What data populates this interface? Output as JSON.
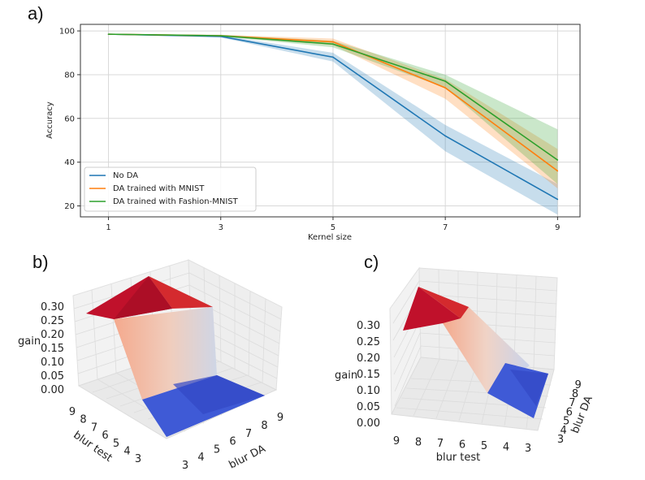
{
  "panels": {
    "a": "a)",
    "b": "b)",
    "c": "c)"
  },
  "colors": {
    "no_da": "#1f77b4",
    "mnist": "#ff7f0e",
    "fashion": "#2ca02c"
  },
  "chart_data": [
    {
      "type": "line",
      "panel": "a)",
      "xlabel": "Kernel size",
      "ylabel": "Accuracy",
      "categories": [
        "1",
        "3",
        "5",
        "7",
        "9"
      ],
      "x": [
        1,
        3,
        5,
        7,
        9
      ],
      "xlim": [
        0.5,
        9.4
      ],
      "ylim": [
        15,
        103
      ],
      "yticks": [
        "20",
        "40",
        "60",
        "80",
        "100"
      ],
      "ytick_values": [
        20,
        40,
        60,
        80,
        100
      ],
      "grid": true,
      "legend": "bottom-left",
      "series": [
        {
          "name": "No DA",
          "values": [
            98.5,
            97.5,
            88,
            52,
            23
          ],
          "lower": [
            98.3,
            97,
            86,
            45,
            16
          ],
          "upper": [
            98.7,
            98,
            90,
            57,
            30
          ]
        },
        {
          "name": "DA trained with MNIST",
          "values": [
            98.5,
            97.8,
            95,
            74,
            36
          ],
          "lower": [
            98.3,
            97.5,
            93.5,
            69,
            28
          ],
          "upper": [
            98.7,
            98.2,
            96.5,
            78,
            46
          ]
        },
        {
          "name": "DA trained with Fashion-MNIST",
          "values": [
            98.5,
            97.8,
            94,
            77,
            41
          ],
          "lower": [
            98.3,
            97.5,
            92.5,
            74,
            30
          ],
          "upper": [
            98.7,
            98.2,
            95.5,
            80,
            55
          ]
        }
      ]
    },
    {
      "type": "surface3d",
      "panel": "b)",
      "zlabel": "gain",
      "xlabel": "blur test",
      "ylabel": "blur DA",
      "zticks": [
        "0.00",
        "0.05",
        "0.10",
        "0.15",
        "0.20",
        "0.25",
        "0.30"
      ],
      "blur_test_ticks": [
        "9",
        "8",
        "7",
        "6",
        "5",
        "4",
        "3"
      ],
      "blur_da_ticks": [
        "3",
        "4",
        "5",
        "6",
        "7",
        "8",
        "9"
      ]
    },
    {
      "type": "surface3d",
      "panel": "c)",
      "zlabel": "gain",
      "xlabel": "blur test",
      "ylabel": "blur DA",
      "zticks": [
        "0.00",
        "0.05",
        "0.10",
        "0.15",
        "0.20",
        "0.25",
        "0.30"
      ],
      "blur_test_ticks": [
        "9",
        "8",
        "7",
        "6",
        "5",
        "4",
        "3"
      ],
      "blur_da_ticks": [
        "3",
        "4",
        "5",
        "6",
        "7",
        "8",
        "9"
      ]
    }
  ]
}
